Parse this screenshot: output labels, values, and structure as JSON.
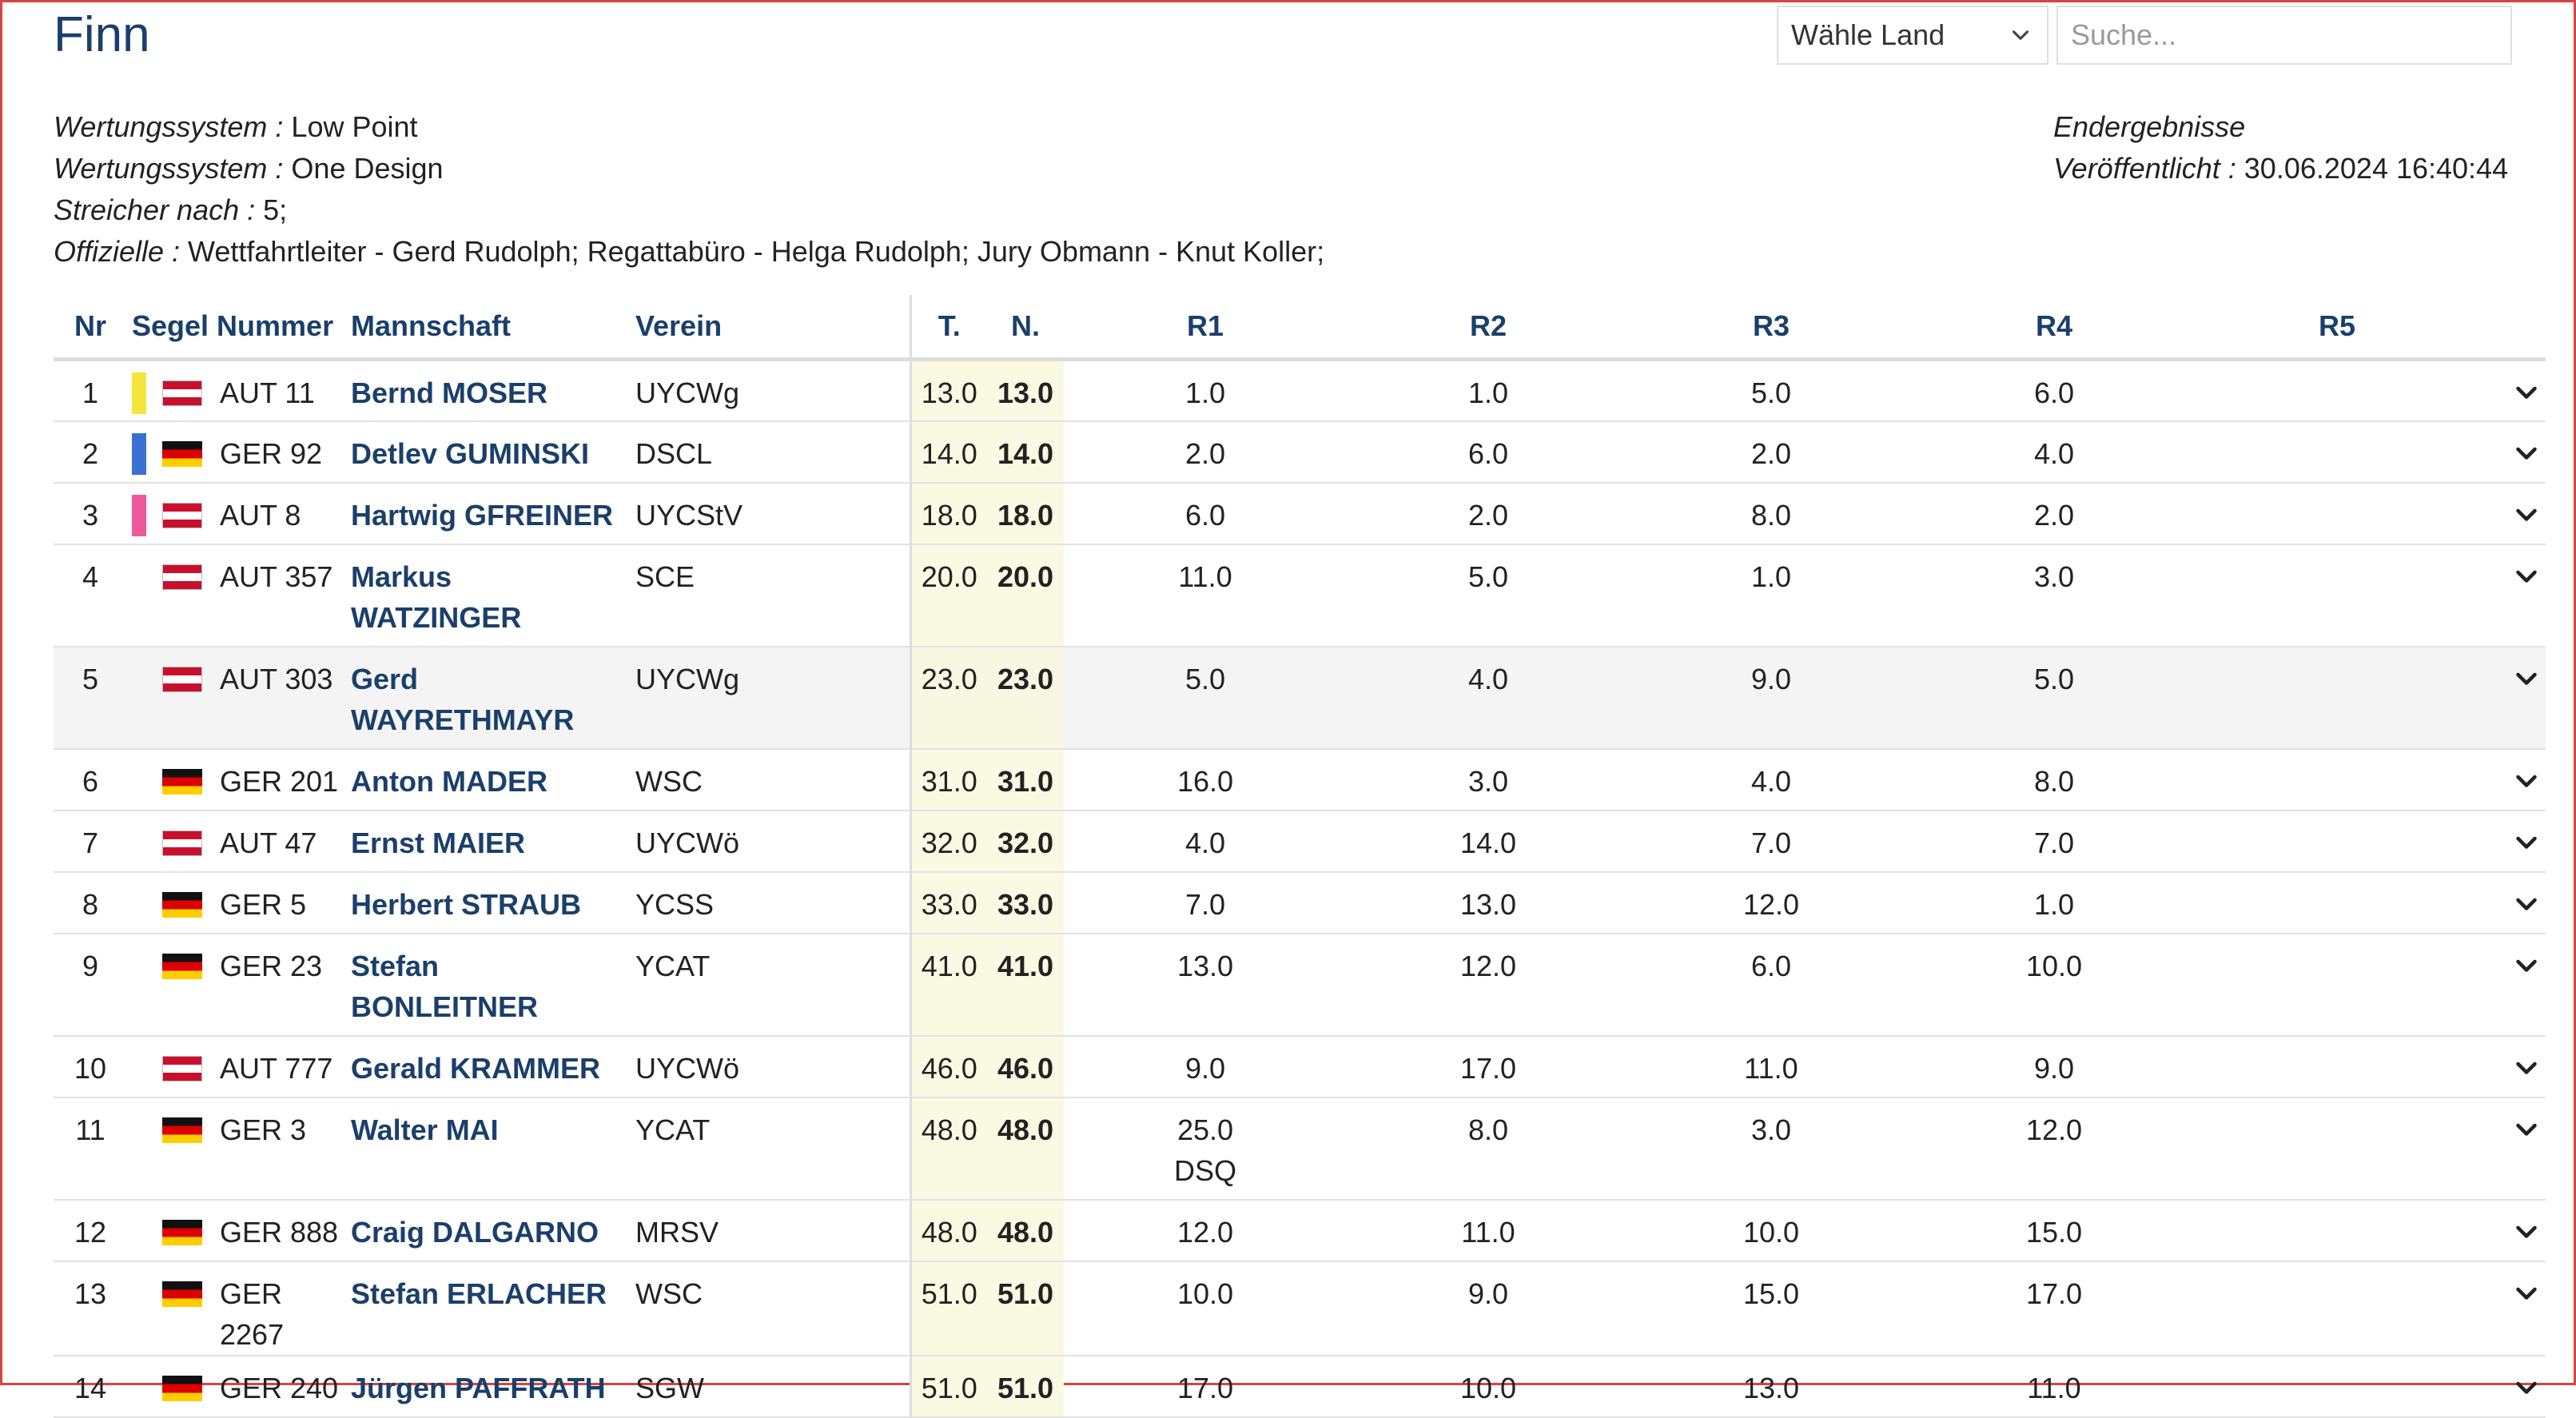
{
  "page": {
    "title": "Finn"
  },
  "controls": {
    "country_select_label": "Wähle Land",
    "search_placeholder": "Suche..."
  },
  "meta_left": [
    {
      "key": "Wertungssystem :",
      "value": " Low Point"
    },
    {
      "key": "Wertungssystem :",
      "value": " One Design"
    },
    {
      "key": "Streicher nach :",
      "value": " 5;"
    },
    {
      "key": "Offizielle :",
      "value": " Wettfahrtleiter - Gerd Rudolph; Regattabüro - Helga Rudolph; Jury Obmann - Knut Koller;"
    }
  ],
  "meta_right": {
    "status": "Endergebnisse",
    "published_key": "Veröffentlicht :",
    "published_value": " 30.06.2024 16:40:44"
  },
  "table": {
    "headers": [
      "Nr",
      "Segel Nummer",
      "Mannschaft",
      "Verein",
      "T.",
      "N.",
      "R1",
      "R2",
      "R3",
      "R4",
      "R5"
    ],
    "rows": [
      {
        "nr": "1",
        "medal_color": "#f5e63b",
        "flag": "aut",
        "sail": "AUT 11",
        "crew": "Bernd MOSER",
        "club": "UYCWg",
        "total": "13.0",
        "net": "13.0",
        "r1": "1.0",
        "r2": "1.0",
        "r3": "5.0",
        "r4": "6.0",
        "r5": ""
      },
      {
        "nr": "2",
        "medal_color": "#3b6fd4",
        "flag": "ger",
        "sail": "GER 92",
        "crew": "Detlev GUMINSKI",
        "club": "DSCL",
        "total": "14.0",
        "net": "14.0",
        "r1": "2.0",
        "r2": "6.0",
        "r3": "2.0",
        "r4": "4.0",
        "r5": ""
      },
      {
        "nr": "3",
        "medal_color": "#ec5a9a",
        "flag": "aut",
        "sail": "AUT 8",
        "crew": "Hartwig GFREINER",
        "club": "UYCStV",
        "total": "18.0",
        "net": "18.0",
        "r1": "6.0",
        "r2": "2.0",
        "r3": "8.0",
        "r4": "2.0",
        "r5": ""
      },
      {
        "nr": "4",
        "medal_color": "",
        "flag": "aut",
        "sail": "AUT 357",
        "crew": "Markus WATZINGER",
        "club": "SCE",
        "total": "20.0",
        "net": "20.0",
        "r1": "11.0",
        "r2": "5.0",
        "r3": "1.0",
        "r4": "3.0",
        "r5": ""
      },
      {
        "nr": "5",
        "medal_color": "",
        "flag": "aut",
        "sail": "AUT 303",
        "crew": "Gerd WAYRETHMAYR",
        "club": "UYCWg",
        "total": "23.0",
        "net": "23.0",
        "r1": "5.0",
        "r2": "4.0",
        "r3": "9.0",
        "r4": "5.0",
        "r5": ""
      },
      {
        "nr": "6",
        "medal_color": "",
        "flag": "ger",
        "sail": "GER 201",
        "crew": "Anton MADER",
        "club": "WSC",
        "total": "31.0",
        "net": "31.0",
        "r1": "16.0",
        "r2": "3.0",
        "r3": "4.0",
        "r4": "8.0",
        "r5": ""
      },
      {
        "nr": "7",
        "medal_color": "",
        "flag": "aut",
        "sail": "AUT 47",
        "crew": "Ernst MAIER",
        "club": "UYCWö",
        "total": "32.0",
        "net": "32.0",
        "r1": "4.0",
        "r2": "14.0",
        "r3": "7.0",
        "r4": "7.0",
        "r5": ""
      },
      {
        "nr": "8",
        "medal_color": "",
        "flag": "ger",
        "sail": "GER 5",
        "crew": "Herbert STRAUB",
        "club": "YCSS",
        "total": "33.0",
        "net": "33.0",
        "r1": "7.0",
        "r2": "13.0",
        "r3": "12.0",
        "r4": "1.0",
        "r5": ""
      },
      {
        "nr": "9",
        "medal_color": "",
        "flag": "ger",
        "sail": "GER 23",
        "crew": "Stefan BONLEITNER",
        "club": "YCAT",
        "total": "41.0",
        "net": "41.0",
        "r1": "13.0",
        "r2": "12.0",
        "r3": "6.0",
        "r4": "10.0",
        "r5": ""
      },
      {
        "nr": "10",
        "medal_color": "",
        "flag": "aut",
        "sail": "AUT 777",
        "crew": "Gerald KRAMMER",
        "club": "UYCWö",
        "total": "46.0",
        "net": "46.0",
        "r1": "9.0",
        "r2": "17.0",
        "r3": "11.0",
        "r4": "9.0",
        "r5": ""
      },
      {
        "nr": "11",
        "medal_color": "",
        "flag": "ger",
        "sail": "GER 3",
        "crew": "Walter MAI",
        "club": "YCAT",
        "total": "48.0",
        "net": "48.0",
        "r1": "25.0",
        "r1_note": "DSQ",
        "r2": "8.0",
        "r3": "3.0",
        "r4": "12.0",
        "r5": ""
      },
      {
        "nr": "12",
        "medal_color": "",
        "flag": "ger",
        "sail": "GER 888",
        "crew": "Craig DALGARNO",
        "club": "MRSV",
        "total": "48.0",
        "net": "48.0",
        "r1": "12.0",
        "r2": "11.0",
        "r3": "10.0",
        "r4": "15.0",
        "r5": ""
      },
      {
        "nr": "13",
        "medal_color": "",
        "flag": "ger",
        "sail": "GER 2267",
        "crew": "Stefan ERLACHER",
        "club": "WSC",
        "total": "51.0",
        "net": "51.0",
        "r1": "10.0",
        "r2": "9.0",
        "r3": "15.0",
        "r4": "17.0",
        "r5": ""
      },
      {
        "nr": "14",
        "medal_color": "",
        "flag": "ger",
        "sail": "GER 240",
        "crew": "Jürgen PAFFRATH",
        "club": "SGW",
        "total": "51.0",
        "net": "51.0",
        "r1": "17.0",
        "r2": "10.0",
        "r3": "13.0",
        "r4": "11.0",
        "r5": ""
      }
    ]
  },
  "icons": {
    "select_chevron": "chevron-down-icon",
    "row_expand": "chevron-down-icon"
  },
  "colors": {
    "primary": "#1b3f6b",
    "total_bg": "#fafae3",
    "frame": "#d64541"
  }
}
